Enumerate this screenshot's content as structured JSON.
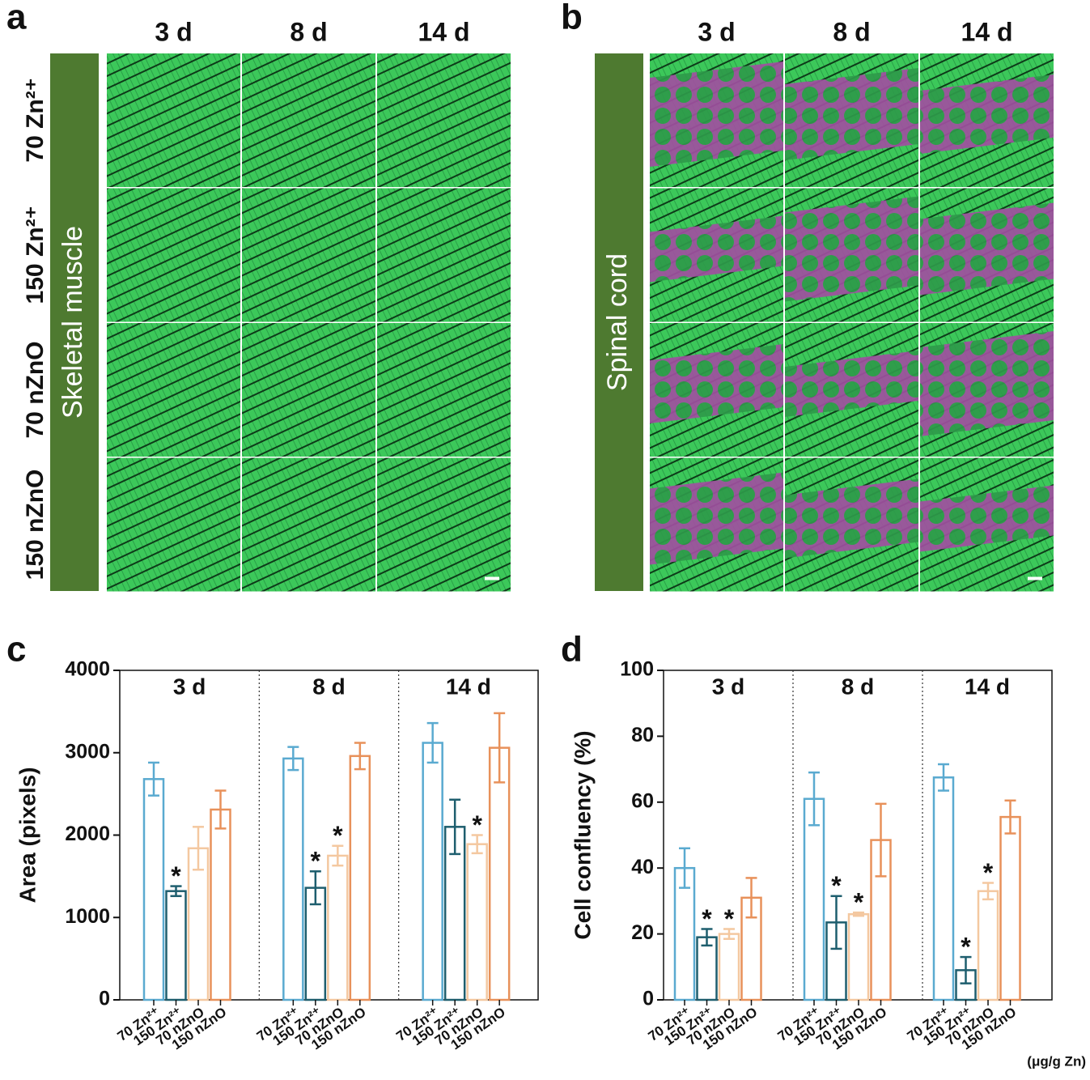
{
  "panels": [
    {
      "label": "a",
      "columns": [
        "3 d",
        "8 d",
        "14 d"
      ],
      "rows": [
        "70 Zn²⁺",
        "150 Zn²⁺",
        "70 nZnO",
        "150 nZnO"
      ],
      "tissue": "Skeletal muscle"
    },
    {
      "label": "b",
      "columns": [
        "3 d",
        "8 d",
        "14 d"
      ],
      "tissue": "Spinal cord"
    }
  ],
  "chart_data": [
    {
      "type": "bar",
      "panel": "c",
      "ylabel": "Area (pixels)",
      "groups": [
        "3 d",
        "8 d",
        "14 d"
      ],
      "ylim": [
        0,
        4000
      ],
      "yticks": [
        0,
        1000,
        2000,
        3000,
        4000
      ],
      "series": [
        {
          "name": "70 Zn²⁺",
          "color": "#5aaad0",
          "values": [
            2680,
            2930,
            3120
          ],
          "errors": [
            200,
            140,
            240
          ]
        },
        {
          "name": "150 Zn²⁺",
          "color": "#1e5e6e",
          "values": [
            1320,
            1360,
            2100
          ],
          "errors": [
            60,
            200,
            330
          ]
        },
        {
          "name": "70 nZnO",
          "color": "#f4c8a0",
          "values": [
            1840,
            1750,
            1890
          ],
          "errors": [
            260,
            120,
            110
          ]
        },
        {
          "name": "150 nZnO",
          "color": "#e8915a",
          "values": [
            2310,
            2960,
            3060
          ],
          "errors": [
            230,
            160,
            420
          ]
        }
      ],
      "annotations": [
        {
          "text": "*",
          "series": 1,
          "group": 0
        },
        {
          "text": "*",
          "series": 1,
          "group": 1
        },
        {
          "text": "*",
          "series": 2,
          "group": 1
        },
        {
          "text": "*",
          "series": 2,
          "group": 2
        }
      ]
    },
    {
      "type": "bar",
      "panel": "d",
      "ylabel": "Cell confluency (%)",
      "groups": [
        "3 d",
        "8 d",
        "14 d"
      ],
      "unit_note": "(μg/g Zn)",
      "ylim": [
        0,
        100
      ],
      "yticks": [
        0,
        20,
        40,
        60,
        80,
        100
      ],
      "series": [
        {
          "name": "70 Zn²⁺",
          "color": "#5aaad0",
          "values": [
            40,
            61,
            67.5
          ],
          "errors": [
            6,
            8,
            4
          ]
        },
        {
          "name": "150 Zn²⁺",
          "color": "#1e5e6e",
          "values": [
            19,
            23.5,
            9
          ],
          "errors": [
            2.5,
            8,
            4
          ]
        },
        {
          "name": "70 nZnO",
          "color": "#f4c8a0",
          "values": [
            20,
            26,
            33
          ],
          "errors": [
            1.5,
            0.5,
            2.5
          ]
        },
        {
          "name": "150 nZnO",
          "color": "#e8915a",
          "values": [
            31,
            48.5,
            55.5
          ],
          "errors": [
            6,
            11,
            5
          ]
        }
      ],
      "annotations": [
        {
          "text": "*",
          "series": 1,
          "group": 0
        },
        {
          "text": "*",
          "series": 2,
          "group": 0
        },
        {
          "text": "*",
          "series": 1,
          "group": 1
        },
        {
          "text": "*",
          "series": 2,
          "group": 1
        },
        {
          "text": "*",
          "series": 1,
          "group": 2
        },
        {
          "text": "*",
          "series": 2,
          "group": 2
        }
      ]
    }
  ]
}
